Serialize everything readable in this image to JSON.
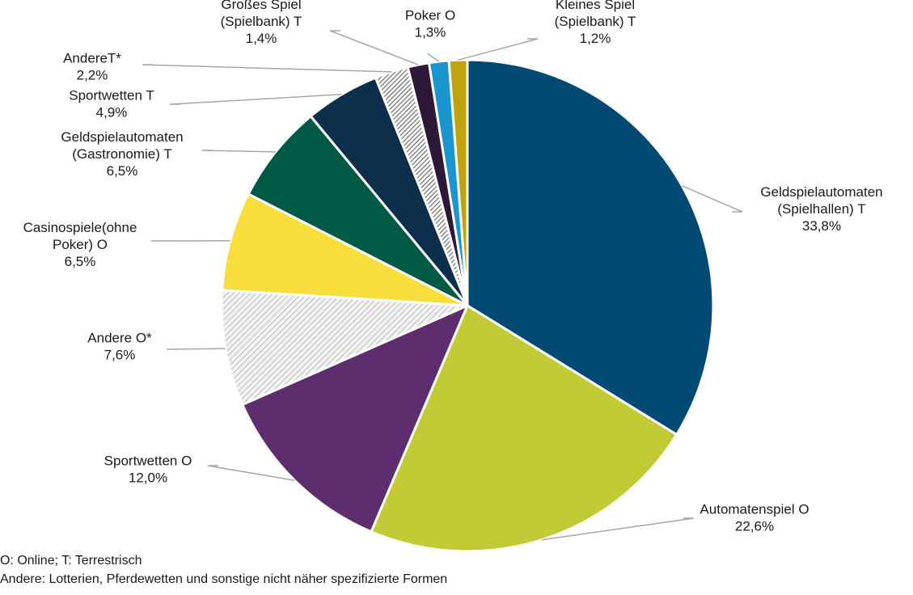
{
  "chart_data": {
    "type": "pie",
    "slices": [
      {
        "label": [
          "Geldspielautomaten",
          "(Spielhallen) T"
        ],
        "value_label": "33,8%",
        "value": 33.8,
        "color": "#004a73",
        "pattern": "none"
      },
      {
        "label": [
          "Automatenspiel O"
        ],
        "value_label": "22,6%",
        "value": 22.6,
        "color": "#c2cb35",
        "pattern": "none"
      },
      {
        "label": [
          "Sportwetten O"
        ],
        "value_label": "12,0%",
        "value": 12.0,
        "color": "#5e2d6d",
        "pattern": "none"
      },
      {
        "label": [
          "Andere O*"
        ],
        "value_label": "7,6%",
        "value": 7.6,
        "color": "#d9d9d9",
        "pattern": "light-diagonal"
      },
      {
        "label": [
          "Casinospiele(ohne",
          "Poker) O"
        ],
        "value_label": "6,5%",
        "value": 6.5,
        "color": "#f7de3a",
        "pattern": "none"
      },
      {
        "label": [
          "Geldspielautomaten",
          "(Gastronomie) T"
        ],
        "value_label": "6,5%",
        "value": 6.5,
        "color": "#005a46",
        "pattern": "none"
      },
      {
        "label": [
          "Sportwetten T"
        ],
        "value_label": "4,9%",
        "value": 4.9,
        "color": "#0d2f4b",
        "pattern": "none"
      },
      {
        "label": [
          "AndereT*"
        ],
        "value_label": "2,2%",
        "value": 2.2,
        "color": "#8a8a8a",
        "pattern": "dark-diagonal"
      },
      {
        "label": [
          "Großes Spiel",
          "(Spielbank) T"
        ],
        "value_label": "1,4%",
        "value": 1.4,
        "color": "#2e1838",
        "pattern": "none"
      },
      {
        "label": [
          "Poker O"
        ],
        "value_label": "1,3%",
        "value": 1.3,
        "color": "#1a96cf",
        "pattern": "none"
      },
      {
        "label": [
          "Kleines Spiel",
          "(Spielbank) T"
        ],
        "value_label": "1,2%",
        "value": 1.2,
        "color": "#bfa20c",
        "pattern": "none"
      }
    ],
    "start_angle": "12 o'clock",
    "direction": "clockwise"
  },
  "footnotes": [
    "O: Online; T: Terrestrisch",
    "Andere: Lotterien, Pferdewetten und sonstige nicht näher spezifizierte Formen"
  ]
}
